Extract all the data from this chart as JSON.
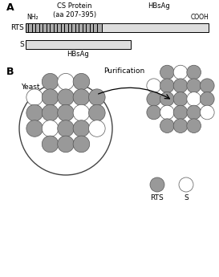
{
  "fig_width": 2.73,
  "fig_height": 3.45,
  "dpi": 100,
  "bg_color": "#ffffff",
  "label_A": "A",
  "label_B": "B",
  "cs_protein_label": "CS Protein\n(aa 207-395)",
  "hbsag_label_top": "HBsAg",
  "nh2_label": "NH₂",
  "cooh_label": "COOH",
  "rts_label": "RTS",
  "s_label": "S",
  "hbsag_bottom_label": "HBsAg",
  "yeast_label": "Yeast",
  "purification_label": "Purification",
  "rts_legend_label": "RTS",
  "s_legend_label": "S",
  "rts_color": "#888888",
  "s_color": "#ffffff",
  "bar_edge_color": "#000000",
  "stripe_color": "#000000",
  "particle_rts_color": "#999999",
  "particle_s_color": "#ffffff",
  "circle_edge_color": "#555555",
  "cluster_circles": [
    [
      -1.0,
      2.0,
      "rts"
    ],
    [
      1.0,
      2.0,
      "rts"
    ],
    [
      3.0,
      2.0,
      "rts"
    ],
    [
      5.0,
      2.0,
      "s"
    ],
    [
      -3.0,
      2.0,
      "s"
    ],
    [
      -1.0,
      0.0,
      "rts"
    ],
    [
      1.0,
      0.0,
      "rts"
    ],
    [
      3.0,
      0.0,
      "rts"
    ],
    [
      5.0,
      0.0,
      "rts"
    ],
    [
      -3.0,
      0.0,
      "rts"
    ],
    [
      -1.0,
      -2.0,
      "rts"
    ],
    [
      1.0,
      -2.0,
      "s"
    ],
    [
      3.0,
      -2.0,
      "rts"
    ],
    [
      5.0,
      -2.0,
      "s"
    ],
    [
      -3.0,
      -2.0,
      "rts"
    ],
    [
      -1.0,
      4.0,
      "rts"
    ],
    [
      1.0,
      4.0,
      "s"
    ],
    [
      3.0,
      4.0,
      "rts"
    ],
    [
      -3.0,
      -4.0,
      "s"
    ],
    [
      1.0,
      -4.0,
      "rts"
    ]
  ]
}
